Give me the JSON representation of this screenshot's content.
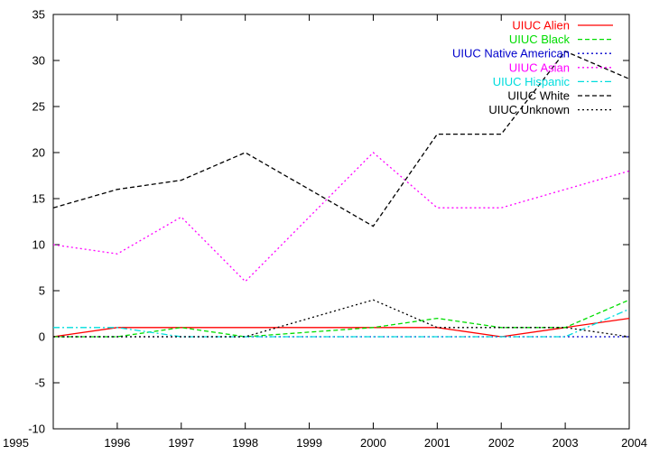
{
  "chart_data": {
    "type": "line",
    "title": "",
    "xlabel": "",
    "ylabel": "",
    "x": [
      1995,
      1996,
      1997,
      1998,
      1999,
      2000,
      2001,
      2002,
      2003,
      2004
    ],
    "xlim": [
      1995,
      2004
    ],
    "ylim": [
      -10,
      35
    ],
    "yticks": [
      -10,
      -5,
      0,
      5,
      10,
      15,
      20,
      25,
      30,
      35
    ],
    "grid": false,
    "legend_position": "top-right",
    "series": [
      {
        "name": "UIUC Alien",
        "color": "#ff0000",
        "dash": "solid",
        "points": [
          [
            1995,
            0
          ],
          [
            1996,
            1
          ],
          [
            1997,
            1
          ],
          [
            1998,
            1
          ],
          [
            2000,
            1
          ],
          [
            2001,
            1
          ],
          [
            2002,
            0
          ],
          [
            2003,
            1
          ],
          [
            2004,
            2
          ]
        ]
      },
      {
        "name": "UIUC Black",
        "color": "#00dd00",
        "dash": "dash",
        "points": [
          [
            1995,
            0
          ],
          [
            1996,
            0
          ],
          [
            1997,
            1
          ],
          [
            1998,
            0
          ],
          [
            2000,
            1
          ],
          [
            2001,
            2
          ],
          [
            2002,
            1
          ],
          [
            2003,
            1
          ],
          [
            2004,
            4
          ]
        ]
      },
      {
        "name": "UIUC Native American",
        "color": "#0000cc",
        "dash": "dot",
        "points": [
          [
            1995,
            0
          ],
          [
            1996,
            0
          ],
          [
            1997,
            0
          ],
          [
            1998,
            0
          ],
          [
            2000,
            0
          ],
          [
            2001,
            0
          ],
          [
            2002,
            0
          ],
          [
            2003,
            0
          ],
          [
            2004,
            0
          ]
        ]
      },
      {
        "name": "UIUC Asian",
        "color": "#ff00ff",
        "dash": "dot",
        "points": [
          [
            1995,
            10
          ],
          [
            1996,
            9
          ],
          [
            1997,
            13
          ],
          [
            1998,
            6
          ],
          [
            2000,
            20
          ],
          [
            2001,
            14
          ],
          [
            2002,
            14
          ],
          [
            2003,
            16
          ],
          [
            2004,
            18
          ]
        ]
      },
      {
        "name": "UIUC Hispanic",
        "color": "#00dddd",
        "dash": "dashdot",
        "points": [
          [
            1995,
            1
          ],
          [
            1996,
            1
          ],
          [
            1997,
            0
          ],
          [
            1998,
            0
          ],
          [
            2000,
            0
          ],
          [
            2001,
            0
          ],
          [
            2002,
            0
          ],
          [
            2003,
            0
          ],
          [
            2004,
            3
          ]
        ]
      },
      {
        "name": "UIUC White",
        "color": "#000000",
        "dash": "dash",
        "points": [
          [
            1995,
            14
          ],
          [
            1996,
            16
          ],
          [
            1997,
            17
          ],
          [
            1998,
            20
          ],
          [
            2000,
            12
          ],
          [
            2001,
            22
          ],
          [
            2002,
            22
          ],
          [
            2003,
            31
          ],
          [
            2004,
            28
          ]
        ]
      },
      {
        "name": "UIUC Unknown",
        "color": "#000000",
        "dash": "dot",
        "points": [
          [
            1995,
            0
          ],
          [
            1996,
            0
          ],
          [
            1997,
            0
          ],
          [
            1998,
            0
          ],
          [
            2000,
            4
          ],
          [
            2001,
            1
          ],
          [
            2002,
            1
          ],
          [
            2003,
            1
          ],
          [
            2004,
            0
          ]
        ]
      }
    ]
  }
}
